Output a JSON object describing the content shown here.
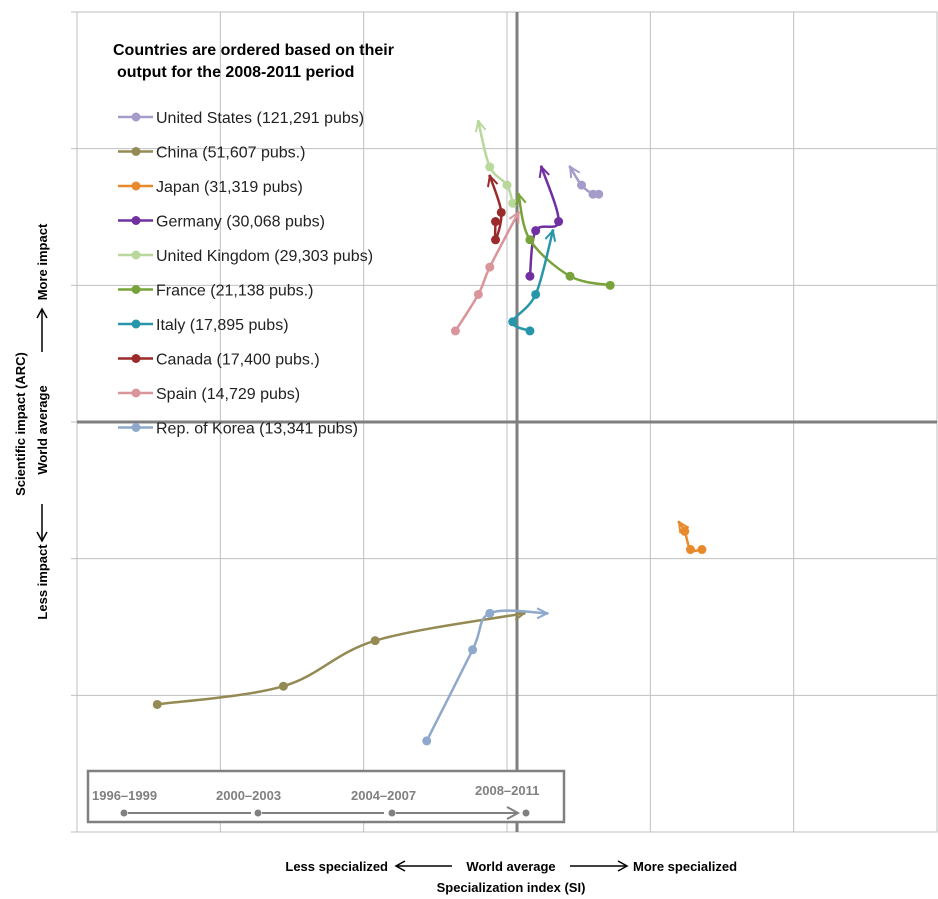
{
  "chart_data": {
    "type": "line",
    "title": "",
    "legend_title_lines": [
      "Countries are ordered based on their",
      "output for the 2008-2011 period"
    ],
    "xlabel": "Specialization index (SI)",
    "x_annotation": {
      "left": "Less specialized",
      "center": "World average",
      "right": "More specialized"
    },
    "ylabel": "Scientific impact (ARC)",
    "y_annotation": {
      "bottom": "Less impact",
      "center": "World average",
      "top": "More impact"
    },
    "xlim": [
      -0.7,
      0.8
    ],
    "ylim": [
      -0.6,
      0.3
    ],
    "grid": true,
    "legend_position": "top-left",
    "periods": [
      "1996–1999",
      "2000–2003",
      "2004–2007",
      "2008–2011"
    ],
    "series": [
      {
        "name": "United States (121,291 pubs)",
        "color": "#a69cc9",
        "x": [
          0.21,
          0.2,
          0.18,
          0.16
        ],
        "y": [
          0.1,
          0.1,
          0.11,
          0.13
        ]
      },
      {
        "name": "China (51,607 pubs.)",
        "color": "#948a54",
        "x": [
          -0.56,
          -0.34,
          -0.18,
          0.08
        ],
        "y": [
          -0.46,
          -0.44,
          -0.39,
          -0.36
        ]
      },
      {
        "name": "Japan (31,319 pubs)",
        "color": "#e8892b",
        "x": [
          0.39,
          0.37,
          0.36,
          0.35
        ],
        "y": [
          -0.29,
          -0.29,
          -0.27,
          -0.26
        ]
      },
      {
        "name": "Germany (30,068 pubs)",
        "color": "#7030a0",
        "x": [
          0.09,
          0.1,
          0.14,
          0.11
        ],
        "y": [
          0.01,
          0.06,
          0.07,
          0.13
        ]
      },
      {
        "name": "United Kingdom (29,303 pubs)",
        "color": "#b8d89c",
        "x": [
          0.06,
          0.05,
          0.02,
          0.0
        ],
        "y": [
          0.09,
          0.11,
          0.13,
          0.18
        ]
      },
      {
        "name": "France (21,138 pubs.)",
        "color": "#77a33a",
        "x": [
          0.23,
          0.16,
          0.09,
          0.07
        ],
        "y": [
          0.0,
          0.01,
          0.05,
          0.1
        ]
      },
      {
        "name": "Italy (17,895 pubs)",
        "color": "#2896aa",
        "x": [
          0.09,
          0.06,
          0.1,
          0.13
        ],
        "y": [
          -0.05,
          -0.04,
          -0.01,
          0.06
        ]
      },
      {
        "name": "Canada (17,400 pubs.)",
        "color": "#9b2a2a",
        "x": [
          0.03,
          0.03,
          0.04,
          0.02
        ],
        "y": [
          0.07,
          0.05,
          0.08,
          0.12
        ]
      },
      {
        "name": "Spain (14,729 pubs)",
        "color": "#d9959a",
        "x": [
          -0.04,
          0.0,
          0.02,
          0.07
        ],
        "y": [
          -0.05,
          -0.01,
          0.02,
          0.08
        ]
      },
      {
        "name": "Rep. of Korea (13,341 pubs)",
        "color": "#8ea9cc",
        "x": [
          -0.09,
          -0.01,
          0.02,
          0.12
        ],
        "y": [
          -0.5,
          -0.4,
          -0.36,
          -0.36
        ]
      }
    ]
  }
}
